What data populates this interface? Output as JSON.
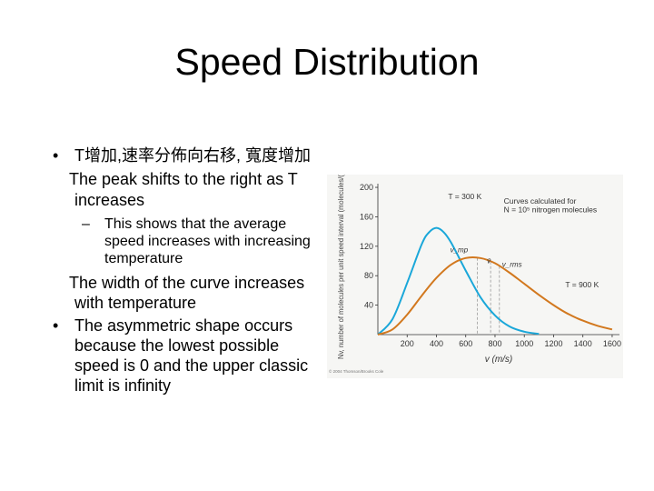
{
  "slide": {
    "title": "Speed Distribution",
    "bullet_marker": "•",
    "sub_marker": "–",
    "bullet1_zh": "T增加,速率分佈向右移, 寬度增加",
    "bullet1_en_line1": "The peak shifts to the right as T",
    "bullet1_en_line2": "increases",
    "sub_line1": "This shows that the average",
    "sub_line2": "speed increases with increasing",
    "sub_line3": "temperature",
    "width_line1": "The width of the curve increases",
    "width_line2": "with temperature",
    "bullet2_line1": "The asymmetric shape occurs",
    "bullet2_line2": "because the lowest possible",
    "bullet2_line3": "speed is 0 and the upper classic",
    "bullet2_line4": "limit is infinity"
  },
  "chart_data": {
    "type": "line",
    "xlabel": "v (m/s)",
    "ylabel": "Nv, number of molecules per unit speed interval (molecules/(m/s))",
    "x_ticks": [
      "200",
      "400",
      "600",
      "800",
      "1000",
      "1200",
      "1400",
      "1600"
    ],
    "y_ticks": [
      "40",
      "80",
      "120",
      "160",
      "200"
    ],
    "xlim": [
      0,
      1650
    ],
    "ylim": [
      0,
      205
    ],
    "annotation": "Curves calculated for N = 10^5 nitrogen molecules",
    "annotation_line1": "Curves calculated for",
    "annotation_line2": "N = 10⁵ nitrogen molecules",
    "markers": [
      "v_mp",
      "v̄",
      "v_rms"
    ],
    "marker_v_mp": 680,
    "marker_avg": 770,
    "marker_rms": 830,
    "copyright": "© 2004 Thomson/Brooks Cole",
    "series": [
      {
        "name": "T = 300 K",
        "color": "#1aa7d9",
        "x": [
          0,
          100,
          200,
          300,
          350,
          400,
          450,
          500,
          600,
          700,
          800,
          900,
          1000,
          1100
        ],
        "y": [
          0,
          21,
          70,
          123,
          139,
          145,
          139,
          125,
          87,
          51,
          26,
          11,
          4,
          1
        ]
      },
      {
        "name": "T = 900 K",
        "color": "#d2781e",
        "x": [
          0,
          100,
          200,
          300,
          400,
          500,
          600,
          700,
          800,
          900,
          1000,
          1100,
          1200,
          1300,
          1400,
          1500,
          1600
        ],
        "y": [
          0,
          7,
          27,
          53,
          77,
          95,
          104,
          104,
          97,
          84,
          69,
          54,
          40,
          28,
          19,
          12,
          7
        ]
      }
    ]
  }
}
